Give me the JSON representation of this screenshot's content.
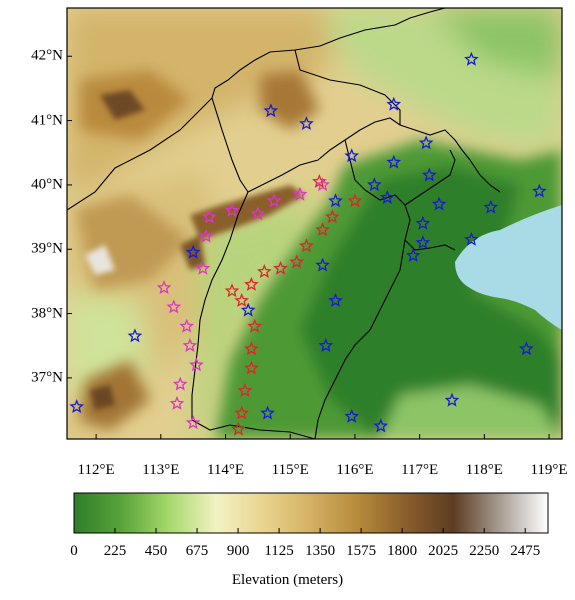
{
  "colors": {
    "low_station": "#1a1ad6",
    "mid_station": "#e0242a",
    "high_station": "#e033c8",
    "sea": "#a8dbe6",
    "boundary": "#000000"
  },
  "map": {
    "lat_labels": [
      "42°N",
      "41°N",
      "40°N",
      "39°N",
      "38°N",
      "37°N"
    ],
    "lat_values": [
      42,
      41,
      40,
      39,
      38,
      37
    ],
    "lon_labels": [
      "112°E",
      "113°E",
      "114°E",
      "115°E",
      "116°E",
      "117°E",
      "118°E",
      "119°E"
    ],
    "lon_values": [
      112,
      113,
      114,
      115,
      116,
      117,
      118,
      119
    ],
    "extent": {
      "lon_min": 111.55,
      "lon_max": 119.2,
      "lat_min": 36.05,
      "lat_max": 42.75
    },
    "stations": {
      "blue": [
        [
          117.8,
          41.95
        ],
        [
          114.7,
          41.15
        ],
        [
          115.25,
          40.95
        ],
        [
          116.6,
          41.25
        ],
        [
          115.95,
          40.45
        ],
        [
          117.1,
          40.65
        ],
        [
          116.6,
          40.35
        ],
        [
          115.7,
          39.75
        ],
        [
          116.3,
          40.0
        ],
        [
          116.5,
          39.8
        ],
        [
          117.15,
          40.15
        ],
        [
          118.85,
          39.9
        ],
        [
          117.3,
          39.7
        ],
        [
          118.1,
          39.65
        ],
        [
          117.05,
          39.4
        ],
        [
          117.05,
          39.1
        ],
        [
          116.9,
          38.9
        ],
        [
          117.8,
          39.15
        ],
        [
          113.5,
          38.95
        ],
        [
          115.5,
          38.75
        ],
        [
          114.35,
          38.05
        ],
        [
          115.7,
          38.2
        ],
        [
          112.6,
          37.65
        ],
        [
          115.55,
          37.5
        ],
        [
          118.65,
          37.45
        ],
        [
          111.7,
          36.55
        ],
        [
          114.65,
          36.45
        ],
        [
          115.95,
          36.4
        ],
        [
          117.5,
          36.65
        ],
        [
          116.4,
          36.25
        ]
      ],
      "red": [
        [
          115.45,
          40.05
        ],
        [
          116.0,
          39.75
        ],
        [
          115.65,
          39.5
        ],
        [
          115.5,
          39.3
        ],
        [
          115.25,
          39.05
        ],
        [
          115.1,
          38.8
        ],
        [
          114.85,
          38.7
        ],
        [
          114.6,
          38.65
        ],
        [
          114.4,
          38.45
        ],
        [
          114.1,
          38.35
        ],
        [
          114.25,
          38.2
        ],
        [
          114.45,
          37.8
        ],
        [
          114.4,
          37.45
        ],
        [
          114.4,
          37.15
        ],
        [
          114.3,
          36.8
        ],
        [
          114.25,
          36.45
        ],
        [
          114.2,
          36.2
        ]
      ],
      "magenta": [
        [
          115.5,
          40.0
        ],
        [
          115.15,
          39.85
        ],
        [
          114.75,
          39.75
        ],
        [
          114.5,
          39.55
        ],
        [
          114.1,
          39.6
        ],
        [
          113.75,
          39.5
        ],
        [
          113.7,
          39.2
        ],
        [
          113.65,
          38.7
        ],
        [
          113.05,
          38.4
        ],
        [
          113.2,
          38.1
        ],
        [
          113.4,
          37.8
        ],
        [
          113.45,
          37.5
        ],
        [
          113.55,
          37.2
        ],
        [
          113.3,
          36.9
        ],
        [
          113.25,
          36.6
        ],
        [
          113.5,
          36.3
        ]
      ]
    }
  },
  "colorbar": {
    "title": "Elevation (meters)",
    "tick_labels": [
      "0",
      "225",
      "450",
      "675",
      "900",
      "1125",
      "1350",
      "1575",
      "1800",
      "2025",
      "2250",
      "2475"
    ],
    "tick_values": [
      0,
      225,
      450,
      675,
      900,
      1125,
      1350,
      1575,
      1800,
      2025,
      2250,
      2475
    ],
    "range": [
      0,
      2600
    ],
    "stops": [
      "#2f7d2a",
      "#58a43a",
      "#a6d86b",
      "#f3f2c4",
      "#e8d48e",
      "#d4b064",
      "#b58a3a",
      "#8a5e2c",
      "#5c3c22",
      "#a89e94",
      "#ffffff"
    ]
  }
}
